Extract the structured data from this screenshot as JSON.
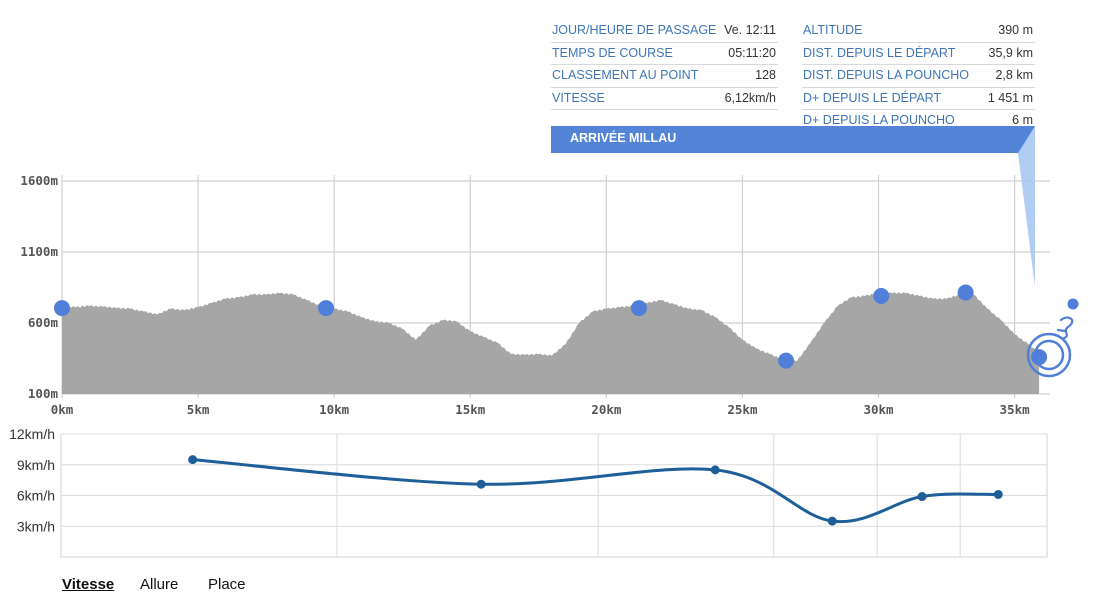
{
  "info_panel": {
    "left": [
      {
        "label": "JOUR/HEURE DE PASSAGE",
        "value": "Ve. 12:11"
      },
      {
        "label": "TEMPS DE COURSE",
        "value": "05:11:20"
      },
      {
        "label": "CLASSEMENT AU POINT",
        "value": "128"
      },
      {
        "label": "VITESSE",
        "value": "6,12km/h"
      }
    ],
    "right": [
      {
        "label": "ALTITUDE",
        "value": "390 m"
      },
      {
        "label": "DIST. DEPUIS LE DÉPART",
        "value": "35,9 km"
      },
      {
        "label": "DIST. DEPUIS LA POUNCHO",
        "value": "2,8 km"
      },
      {
        "label": "D+ DEPUIS LE DÉPART",
        "value": "1 451 m"
      },
      {
        "label": "D+ DEPUIS LA POUNCHO",
        "value": "6 m"
      }
    ],
    "banner": "ARRIVÉE MILLAU"
  },
  "colors": {
    "accent": "#4e7fd6",
    "banner": "#5384d8",
    "profile_fill": "#a6a6a6",
    "marker": "#4f7fd9",
    "speed_line": "#1f5f99",
    "label_blue": "#3f75b7"
  },
  "icons": [
    "runner-icon",
    "location-pulse-icon"
  ],
  "chart_data": [
    {
      "type": "area",
      "xlabel": "",
      "ylabel": "",
      "xlim": [
        0,
        36.3
      ],
      "ylim": [
        100,
        1600
      ],
      "x_ticks": [
        "0km",
        "5km",
        "10km",
        "15km",
        "20km",
        "25km",
        "30km",
        "35km"
      ],
      "y_ticks": [
        "1600m",
        "1100m",
        "600m",
        "100m"
      ],
      "grid": true,
      "x": [
        0,
        0.5,
        1,
        1.5,
        2,
        2.5,
        3,
        3.5,
        4,
        4.5,
        5,
        5.5,
        6,
        6.5,
        7,
        7.5,
        8,
        8.5,
        9,
        9.5,
        10,
        10.5,
        11,
        11.5,
        12,
        12.5,
        13,
        13.5,
        14,
        14.5,
        15,
        15.5,
        16,
        16.5,
        17,
        17.5,
        18,
        18.5,
        19,
        19.5,
        20,
        20.5,
        21,
        21.5,
        22,
        22.5,
        23,
        23.5,
        24,
        24.5,
        25,
        25.5,
        26,
        26.5,
        27,
        27.5,
        28,
        28.5,
        29,
        29.5,
        30,
        30.5,
        31,
        31.5,
        32,
        32.5,
        33,
        33.5,
        34,
        34.5,
        35,
        35.5,
        35.9
      ],
      "y": [
        720,
        710,
        720,
        715,
        705,
        700,
        680,
        660,
        700,
        690,
        710,
        740,
        770,
        780,
        800,
        800,
        810,
        800,
        760,
        720,
        700,
        680,
        640,
        610,
        600,
        560,
        480,
        580,
        620,
        610,
        540,
        500,
        460,
        380,
        375,
        380,
        370,
        450,
        600,
        680,
        700,
        710,
        720,
        740,
        760,
        730,
        700,
        690,
        640,
        570,
        480,
        420,
        380,
        340,
        330,
        460,
        600,
        720,
        780,
        790,
        810,
        810,
        810,
        790,
        770,
        770,
        800,
        800,
        700,
        620,
        520,
        450,
        390
      ],
      "markers": [
        {
          "x": 0,
          "y": 705
        },
        {
          "x": 9.7,
          "y": 705
        },
        {
          "x": 21.2,
          "y": 705
        },
        {
          "x": 26.6,
          "y": 335
        },
        {
          "x": 30.1,
          "y": 790
        },
        {
          "x": 33.2,
          "y": 815
        },
        {
          "x": 35.9,
          "y": 360
        }
      ]
    },
    {
      "type": "line",
      "xlabel": "",
      "ylabel": "",
      "ylim": [
        0,
        12
      ],
      "y_ticks": [
        "12km/h",
        "9km/h",
        "6km/h",
        "3km/h"
      ],
      "grid": true,
      "series": [
        {
          "x": [
            4.8,
            15.4,
            24.0,
            28.3,
            31.6,
            34.4
          ],
          "values": [
            9.5,
            7.1,
            8.5,
            3.5,
            5.9,
            6.1
          ]
        }
      ]
    }
  ],
  "tabs": [
    {
      "label": "Vitesse",
      "active": true
    },
    {
      "label": "Allure",
      "active": false
    },
    {
      "label": "Place",
      "active": false
    }
  ]
}
